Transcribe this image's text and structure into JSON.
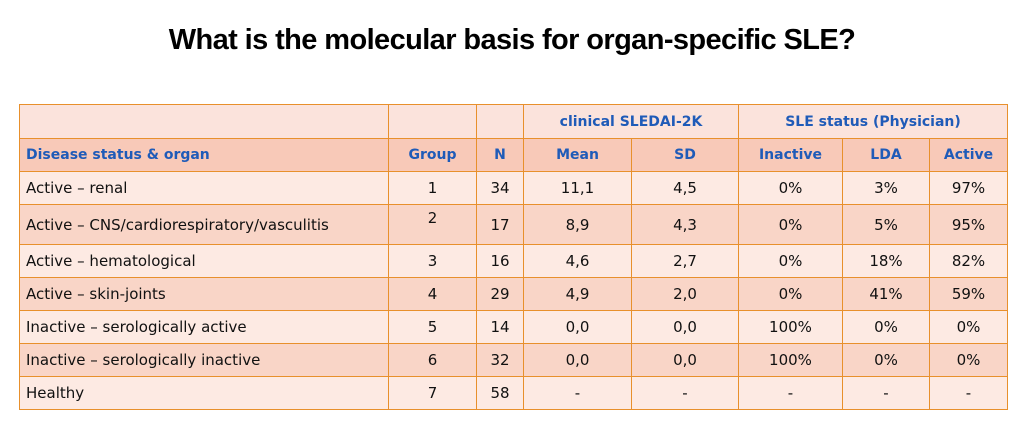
{
  "title": "What is the molecular basis for organ-specific SLE?",
  "table": {
    "group_headers": {
      "sledai": "clinical SLEDAI-2K",
      "status": "SLE status (Physician)"
    },
    "columns": [
      "Disease status & organ",
      "Group",
      "N",
      "Mean",
      "SD",
      "Inactive",
      "LDA",
      "Active"
    ],
    "rows": [
      [
        "Active – renal",
        "1",
        "34",
        "11,1",
        "4,5",
        "0%",
        "3%",
        "97%"
      ],
      [
        "Active – CNS/cardiorespiratory/vasculitis",
        "2",
        "17",
        "8,9",
        "4,3",
        "0%",
        "5%",
        "95%"
      ],
      [
        "Active – hematological",
        "3",
        "16",
        "4,6",
        "2,7",
        "0%",
        "18%",
        "82%"
      ],
      [
        "Active – skin-joints",
        "4",
        "29",
        "4,9",
        "2,0",
        "0%",
        "41%",
        "59%"
      ],
      [
        "Inactive – serologically active",
        "5",
        "14",
        "0,0",
        "0,0",
        "100%",
        "0%",
        "0%"
      ],
      [
        "Inactive – serologically inactive",
        "6",
        "32",
        "0,0",
        "0,0",
        "100%",
        "0%",
        "0%"
      ],
      [
        "Healthy",
        "7",
        "58",
        "-",
        "-",
        "-",
        "-",
        "-"
      ]
    ]
  },
  "colors": {
    "border": "#e8902c",
    "header_text": "#1f5bb8",
    "header_fill": "#f8c9b8",
    "row_light": "#fdeae3",
    "row_dark": "#f9d5c7"
  }
}
